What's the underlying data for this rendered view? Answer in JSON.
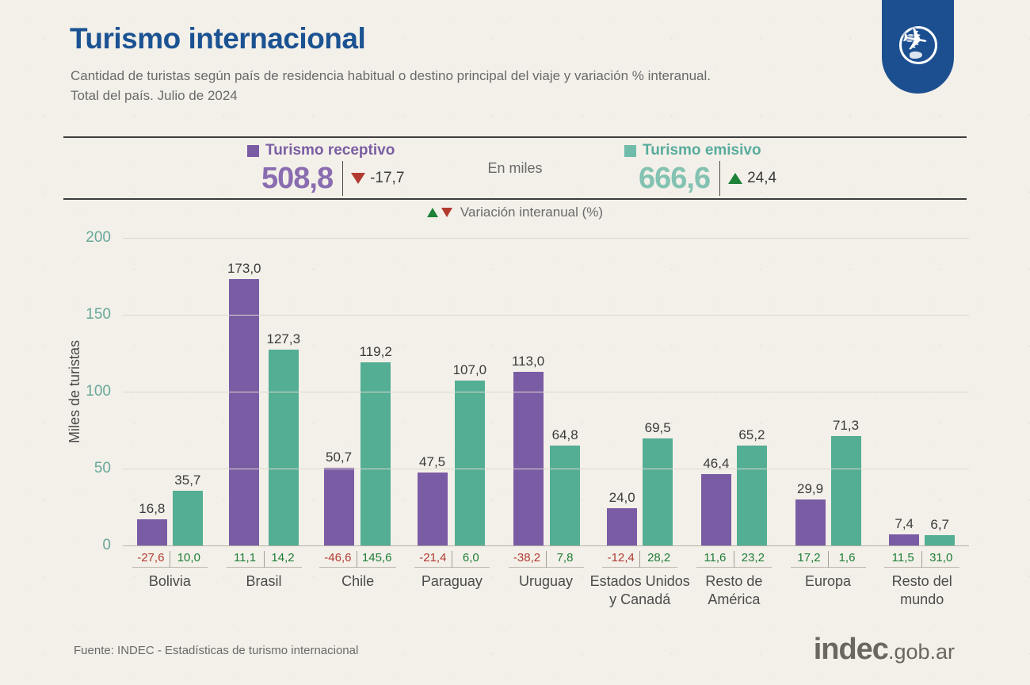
{
  "header": {
    "title": "Turismo internacional",
    "subtitle_line1": "Cantidad de turistas según país de residencia habitual o destino principal del viaje y variación % interanual.",
    "subtitle_line2": "Total del país. Julio de 2024"
  },
  "summary": {
    "receptivo": {
      "label": "Turismo receptivo",
      "value": "508,8",
      "variation": "-17,7",
      "direction": "down"
    },
    "emisivo": {
      "label": "Turismo emisivo",
      "value": "666,6",
      "variation": "24,4",
      "direction": "up"
    },
    "unit_note": "En miles",
    "variation_note": "Variación interanual (%)"
  },
  "chart_data": {
    "type": "bar",
    "title": "Turismo internacional",
    "ylabel": "Miles de turistas",
    "ylim": [
      0,
      200
    ],
    "yticks": [
      0,
      50,
      100,
      150,
      200
    ],
    "grid": true,
    "legend_position": "top",
    "categories": [
      "Bolivia",
      "Brasil",
      "Chile",
      "Paraguay",
      "Uruguay",
      "Estados Unidos\ny Canadá",
      "Resto de\nAmérica",
      "Europa",
      "Resto del\nmundo"
    ],
    "series": [
      {
        "name": "Turismo receptivo",
        "color": "#7a5ca4",
        "values": [
          16.8,
          173.0,
          50.7,
          47.5,
          113.0,
          24.0,
          46.4,
          29.9,
          7.4
        ],
        "value_labels": [
          "16,8",
          "173,0",
          "50,7",
          "47,5",
          "113,0",
          "24,0",
          "46,4",
          "29,9",
          "7,4"
        ],
        "variation_labels": [
          "-27,6",
          "11,1",
          "-46,6",
          "-21,4",
          "-38,2",
          "-12,4",
          "11,6",
          "17,2",
          "11,5"
        ]
      },
      {
        "name": "Turismo emisivo",
        "color": "#53ae93",
        "values": [
          35.7,
          127.3,
          119.2,
          107.0,
          64.8,
          69.5,
          65.2,
          71.3,
          6.7
        ],
        "value_labels": [
          "35,7",
          "127,3",
          "119,2",
          "107,0",
          "64,8",
          "69,5",
          "65,2",
          "71,3",
          "6,7"
        ],
        "variation_labels": [
          "10,0",
          "14,2",
          "145,6",
          "6,0",
          "7,8",
          "28,2",
          "23,2",
          "1,6",
          "31,0"
        ]
      }
    ]
  },
  "colors": {
    "background": "#f3f0e9",
    "title_blue": "#1b5392",
    "receptivo_purple": "#7a5ca4",
    "emisivo_teal": "#53ae93",
    "negative_red": "#b23a30",
    "positive_green": "#1e8138",
    "tick_teal": "#68a89b",
    "logo_blue": "#1c4f90"
  },
  "footer": {
    "source": "Fuente: INDEC - Estadísticas de turismo internacional",
    "brand_main": "indec",
    "brand_suffix": ".gob.ar"
  }
}
